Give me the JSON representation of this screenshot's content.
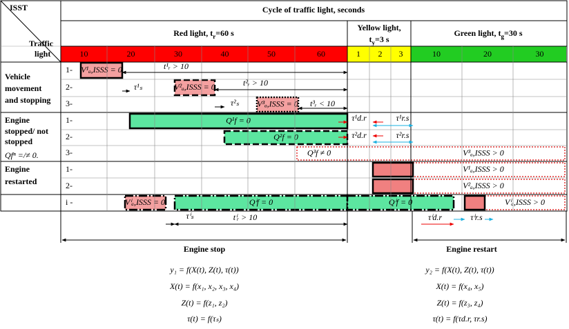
{
  "header": {
    "isst": "ISST",
    "traffic": "Traffic",
    "light": "light",
    "cycle": "Cycle of traffic light, seconds"
  },
  "lights": {
    "red": {
      "text": "Red light, t",
      "sub": "r",
      "rest": "=60 s"
    },
    "yellow": {
      "line1": "Yellow light,",
      "text": "t",
      "sub": "y",
      "rest": "=3 s"
    },
    "green": {
      "text": "Green light, t",
      "sub": "g",
      "rest": "=30 s"
    }
  },
  "seconds": {
    "red": [
      "10",
      "20",
      "30",
      "40",
      "50",
      "60"
    ],
    "yellow": [
      "1",
      "2",
      "3"
    ],
    "green": [
      "10",
      "20",
      "30"
    ]
  },
  "groups": [
    [
      "Vehicle",
      "movement",
      "and stopping"
    ],
    [
      "Engine",
      "stopped/ not",
      "stopped",
      "Qfⁿ =/≠ 0."
    ],
    [
      "Engine",
      "restarted"
    ]
  ],
  "rows": [
    "1-",
    "2-",
    "3-",
    "1-",
    "2-",
    "3-",
    "1-",
    "2-",
    "i -"
  ],
  "boxes": [
    "V¹ₐ,ISSS = 0",
    "V²ₐ,ISSS = 0",
    "V³ₐ,ISSS = 0",
    "Q¹f = 0",
    "Q²f = 0",
    "Q³f ≠ 0",
    "V³ₐ,ISSS > 0",
    "V¹ₐ,ISSS > 0",
    "V²ₐ,ISSS > 0",
    "Vⁱₐ,ISSS = 0",
    "Qⁱf = 0",
    "Qⁱf = 0",
    "Vⁱₐ,ISSS > 0"
  ],
  "annotations": [
    "t¹ᵣ > 10",
    "τ¹ₛ",
    "t²ᵣ > 10",
    "τ²ₛ",
    "t³ᵣ < 10",
    "τ¹d.r",
    "τ¹r.s",
    "τ²d.r",
    "τ²r.s",
    "τⁱₛ",
    "tⁱᵣ > 10",
    "τⁱd.r",
    "τⁱr.s"
  ],
  "phases": {
    "stop": "Engine stop",
    "restart": "Engine restart"
  },
  "equations": {
    "left": [
      "y₁ = f(X(t), Z(t), τ(t))",
      "X(t) = f(x₁, x₂, x₃, x₄)",
      "Z(t) = f(z₁, z₂)",
      "τ(t) = f(τₛ)"
    ],
    "right": [
      "y₂ = f(X(t), Z(t), τ(t))",
      "X(t) = f(x₄, x₅)",
      "Z(t) = f(z₃, z₄)",
      "τ(t) = f(τd.r, τr.s)"
    ]
  }
}
